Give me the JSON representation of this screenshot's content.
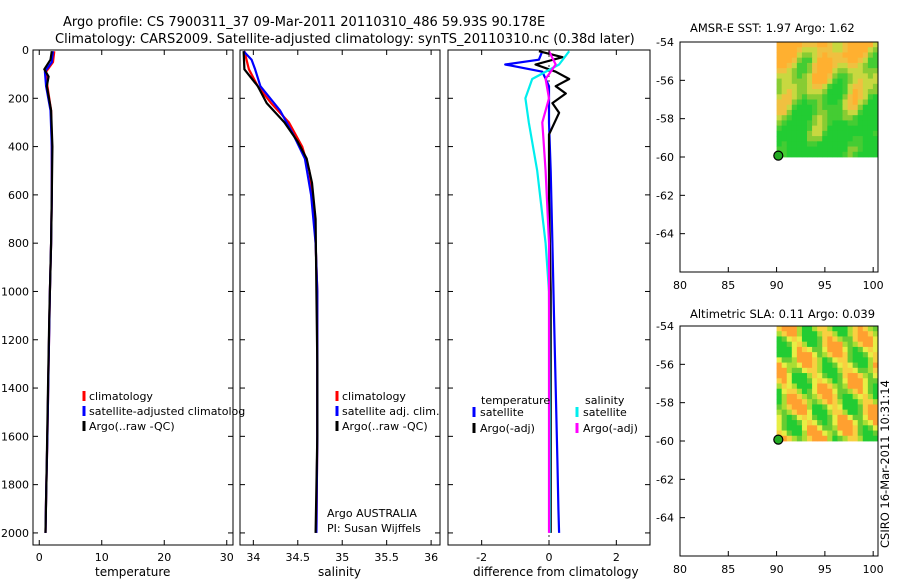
{
  "header": {
    "line1": "Argo profile: CS 7900311_37 09-Mar-2011 20110310_486 59.93S 90.178E",
    "line2": "Climatology: CARS2009. Satellite-adjusted climatology: synTS_20110310.nc (0.38d later)"
  },
  "side_label": "CSIRO 16-Mar-2011 10:31:14",
  "colors": {
    "climatology": "#ff0000",
    "satellite_adjusted": "#0000ff",
    "argo": "#000000",
    "sal_satellite": "#00eeee",
    "sal_argo": "#ff00ff",
    "map_green": "#22cc33",
    "map_yellow": "#f0ee44",
    "map_orange": "#ffb030"
  },
  "chart_data": [
    {
      "type": "line",
      "xlabel": "temperature",
      "ylabel": "",
      "xlim": [
        -1,
        31
      ],
      "ylim": [
        2050,
        0
      ],
      "y_reversed": true,
      "xticks": [
        0,
        10,
        20,
        30
      ],
      "xtick_labels": [
        "0",
        "10",
        "20",
        "30"
      ],
      "yticks": [
        0,
        200,
        400,
        600,
        800,
        1000,
        1200,
        1400,
        1600,
        1800,
        2000
      ],
      "ytick_labels": [
        "0",
        "200",
        "400",
        "600",
        "800",
        "1000",
        "1200",
        "1400",
        "1600",
        "1800",
        "2000"
      ],
      "legend": {
        "position": "lower-right",
        "entries": [
          "climatology",
          "satellite-adjusted climatolog",
          "Argo(..raw -QC)"
        ]
      },
      "series": [
        {
          "name": "climatology",
          "color": "#ff0000",
          "x": [
            2.4,
            2.2,
            1.1,
            1.3,
            1.9,
            2.0,
            2.0,
            1.9,
            1.7,
            1.5,
            1.3,
            1.1,
            1.0
          ],
          "y": [
            5,
            50,
            90,
            150,
            250,
            400,
            600,
            800,
            1000,
            1300,
            1600,
            1850,
            2000
          ]
        },
        {
          "name": "satellite-adjusted climatolog",
          "color": "#0000ff",
          "x": [
            2.2,
            2.0,
            0.9,
            1.1,
            1.8,
            2.0,
            2.0,
            1.9,
            1.7,
            1.5,
            1.3,
            1.1,
            1.0
          ],
          "y": [
            5,
            50,
            90,
            150,
            250,
            400,
            600,
            800,
            1000,
            1300,
            1600,
            1850,
            2000
          ]
        },
        {
          "name": "Argo(..raw -QC)",
          "color": "#000000",
          "x": [
            2.0,
            1.8,
            0.8,
            1.5,
            1.2,
            1.9,
            2.1,
            2.0,
            1.9,
            1.6,
            1.4,
            1.2,
            1.0
          ],
          "y": [
            5,
            40,
            80,
            110,
            150,
            250,
            400,
            600,
            800,
            1100,
            1400,
            1700,
            2000
          ]
        }
      ]
    },
    {
      "type": "line",
      "xlabel": "salinity",
      "ylabel": "",
      "xlim": [
        33.85,
        36.1
      ],
      "ylim": [
        2050,
        0
      ],
      "y_reversed": true,
      "xticks": [
        34,
        34.5,
        35,
        35.5,
        36
      ],
      "xtick_labels": [
        "34",
        "34.5",
        "35",
        "35.5",
        "36"
      ],
      "legend": {
        "position": "lower-right",
        "entries": [
          "climatology",
          "satellite adj. clim.",
          "Argo(..raw -QC)"
        ]
      },
      "annotation": {
        "line1": "Argo AUSTRALIA",
        "line2": "PI: Susan Wijffels"
      },
      "series": [
        {
          "name": "climatology",
          "color": "#ff0000",
          "x": [
            33.9,
            33.95,
            34.05,
            34.2,
            34.4,
            34.55,
            34.63,
            34.68,
            34.7,
            34.72,
            34.72,
            34.72,
            34.71
          ],
          "y": [
            5,
            80,
            150,
            220,
            300,
            400,
            500,
            650,
            800,
            1000,
            1300,
            1600,
            2000
          ]
        },
        {
          "name": "satellite adj. clim.",
          "color": "#0000ff",
          "x": [
            33.89,
            33.98,
            34.02,
            34.08,
            34.3,
            34.45,
            34.58,
            34.65,
            34.7,
            34.72,
            34.72,
            34.72,
            34.71
          ],
          "y": [
            5,
            40,
            80,
            150,
            250,
            350,
            450,
            600,
            800,
            1000,
            1300,
            1600,
            2000
          ]
        },
        {
          "name": "Argo(..raw -QC)",
          "color": "#000000",
          "x": [
            33.89,
            33.9,
            34.05,
            34.15,
            34.35,
            34.5,
            34.6,
            34.66,
            34.7,
            34.71,
            34.72,
            34.72,
            34.7
          ],
          "y": [
            5,
            80,
            150,
            220,
            300,
            380,
            450,
            550,
            700,
            1000,
            1300,
            1600,
            2000
          ]
        }
      ]
    },
    {
      "type": "line",
      "xlabel": "difference from climatology",
      "ylabel": "",
      "xlim": [
        -3,
        3
      ],
      "ylim": [
        2050,
        0
      ],
      "y_reversed": true,
      "xticks": [
        -2,
        0,
        2
      ],
      "xtick_labels": [
        "-2",
        "0",
        "2"
      ],
      "legend": {
        "position": "lower-center",
        "temperature_heading": "temperature",
        "salinity_heading": "salinity",
        "entries": [
          "satellite",
          "Argo(-adj)",
          "satellite",
          "Argo(-adj)"
        ]
      },
      "series": [
        {
          "name": "temperature satellite",
          "color": "#0000ff",
          "x": [
            -0.2,
            -0.3,
            -1.3,
            -0.2,
            0.0,
            0.0,
            0.05,
            0.1,
            0.15,
            0.2,
            0.25,
            0.28,
            0.3
          ],
          "y": [
            5,
            40,
            60,
            90,
            150,
            300,
            500,
            800,
            1100,
            1400,
            1700,
            1900,
            2000
          ]
        },
        {
          "name": "temperature Argo(-adj)",
          "color": "#000000",
          "x": [
            -0.3,
            0.4,
            -0.4,
            0.2,
            0.6,
            0.2,
            0.5,
            0.1,
            0.3,
            0.0,
            0.0,
            0.05,
            0.05,
            0.05
          ],
          "y": [
            5,
            30,
            60,
            90,
            120,
            150,
            180,
            220,
            260,
            350,
            600,
            1000,
            1500,
            2000
          ]
        },
        {
          "name": "salinity satellite",
          "color": "#00eeee",
          "x": [
            0.6,
            0.3,
            -0.5,
            -0.7,
            -0.6,
            -0.35,
            -0.1,
            0.0,
            0.02,
            0.02
          ],
          "y": [
            5,
            60,
            120,
            200,
            300,
            500,
            800,
            1000,
            1500,
            2000
          ]
        },
        {
          "name": "salinity Argo(-adj)",
          "color": "#ff00ff",
          "x": [
            0.0,
            0.2,
            -0.1,
            0.0,
            -0.2,
            -0.1,
            0.0,
            0.0,
            0.0
          ],
          "y": [
            5,
            60,
            120,
            200,
            300,
            500,
            800,
            1500,
            2000
          ]
        }
      ]
    },
    {
      "type": "heatmap",
      "title": "AMSR-E SST: 1.97 Argo: 1.62",
      "xlim": [
        80,
        100.5
      ],
      "ylim": [
        -66,
        -54
      ],
      "xticks": [
        80,
        85,
        90,
        95,
        100
      ],
      "xtick_labels": [
        "80",
        "85",
        "90",
        "95",
        "100"
      ],
      "yticks": [
        -54,
        -56,
        -58,
        -60,
        -62,
        -64
      ],
      "ytick_labels": [
        "-54",
        "-56",
        "-58",
        "-60",
        "-62",
        "-64"
      ],
      "field_extent": {
        "lon": [
          90,
          100.5
        ],
        "lat": [
          -60,
          -54
        ]
      },
      "argo_position": {
        "lon": 90.178,
        "lat": -59.93
      },
      "palette": [
        "#22cc33",
        "#44cc33",
        "#88cc33",
        "#c8d840",
        "#f0c040",
        "#ffb030"
      ]
    },
    {
      "type": "heatmap",
      "title": "Altimetric SLA: 0.11 Argo: 0.039",
      "xlim": [
        80,
        100.5
      ],
      "ylim": [
        -66,
        -54
      ],
      "xticks": [
        80,
        85,
        90,
        95,
        100
      ],
      "xtick_labels": [
        "80",
        "85",
        "90",
        "95",
        "100"
      ],
      "yticks": [
        -54,
        -56,
        -58,
        -60,
        -62,
        -64
      ],
      "ytick_labels": [
        "-54",
        "-56",
        "-58",
        "-60",
        "-62",
        "-64"
      ],
      "field_extent": {
        "lon": [
          90,
          100.5
        ],
        "lat": [
          -60,
          -54
        ]
      },
      "argo_position": {
        "lon": 90.178,
        "lat": -59.93
      },
      "palette": [
        "#22cc33",
        "#66cc33",
        "#aadd33",
        "#e8ee44",
        "#f8d040",
        "#ffa030"
      ]
    }
  ]
}
